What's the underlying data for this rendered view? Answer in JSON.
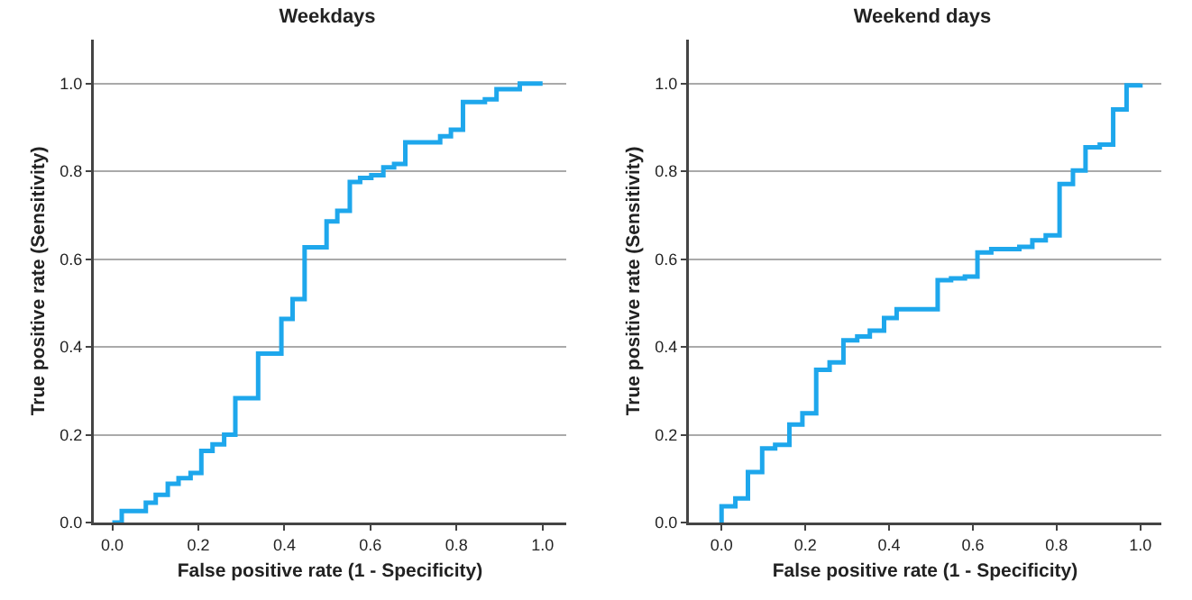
{
  "chart_data": [
    {
      "type": "step",
      "title": "Weekdays",
      "xlabel": "False positive rate (1 - Specificity)",
      "ylabel": "True positive rate (Sensitivity)",
      "xlim": [
        -0.043,
        1.055
      ],
      "xticks": [
        {
          "value": 0,
          "label": "0.0"
        },
        {
          "value": 0.2,
          "label": "0.2"
        },
        {
          "value": 0.4,
          "label": "0.4"
        },
        {
          "value": 0.6,
          "label": "0.6"
        },
        {
          "value": 0.8,
          "label": "0.8"
        },
        {
          "value": 1,
          "label": "1.0"
        }
      ],
      "ylim": [
        0,
        1.1
      ],
      "yticks": [
        {
          "value": 0,
          "label": "0.0"
        },
        {
          "value": 0.2,
          "label": "0.2"
        },
        {
          "value": 0.4,
          "label": "0.4"
        },
        {
          "value": 0.6,
          "label": "0.6"
        },
        {
          "value": 0.8,
          "label": "0.8"
        },
        {
          "value": 1,
          "label": "1.0"
        }
      ],
      "grid": "y",
      "series": [
        {
          "color": "#1ea7ec",
          "x": [
            0,
            0.022,
            0.078,
            0.101,
            0.129,
            0.154,
            0.182,
            0.207,
            0.233,
            0.26,
            0.286,
            0.339,
            0.393,
            0.419,
            0.447,
            0.498,
            0.523,
            0.552,
            0.576,
            0.602,
            0.63,
            0.655,
            0.681,
            0.762,
            0.787,
            0.815,
            0.866,
            0.893,
            0.947,
            1
          ],
          "values": [
            0,
            0.026,
            0.045,
            0.063,
            0.088,
            0.101,
            0.113,
            0.163,
            0.178,
            0.2,
            0.283,
            0.385,
            0.464,
            0.509,
            0.627,
            0.686,
            0.71,
            0.776,
            0.785,
            0.791,
            0.809,
            0.817,
            0.866,
            0.88,
            0.895,
            0.958,
            0.964,
            0.987,
            1,
            1
          ]
        }
      ]
    },
    {
      "type": "step",
      "title": "Weekend days",
      "xlabel": "False positive rate (1 - Specificity)",
      "ylabel": "True positive rate (Sensitivity)",
      "xlim": [
        -0.078,
        1.05
      ],
      "xticks": [
        {
          "value": 0,
          "label": "0.0"
        },
        {
          "value": 0.2,
          "label": "0.2"
        },
        {
          "value": 0.4,
          "label": "0.4"
        },
        {
          "value": 0.6,
          "label": "0.6"
        },
        {
          "value": 0.8,
          "label": "0.8"
        },
        {
          "value": 1,
          "label": "1.0"
        }
      ],
      "ylim": [
        0,
        1.1
      ],
      "yticks": [
        {
          "value": 0,
          "label": "0.0"
        },
        {
          "value": 0.2,
          "label": "0.2"
        },
        {
          "value": 0.4,
          "label": "0.4"
        },
        {
          "value": 0.6,
          "label": "0.6"
        },
        {
          "value": 0.8,
          "label": "0.8"
        },
        {
          "value": 1,
          "label": "1.0"
        }
      ],
      "grid": "y",
      "series": [
        {
          "color": "#1ea7ec",
          "x": [
            0,
            0,
            0.033,
            0.063,
            0.097,
            0.128,
            0.162,
            0.193,
            0.226,
            0.258,
            0.291,
            0.324,
            0.354,
            0.388,
            0.418,
            0.516,
            0.548,
            0.581,
            0.611,
            0.644,
            0.711,
            0.742,
            0.774,
            0.807,
            0.839,
            0.869,
            0.903,
            0.935,
            0.967,
            1
          ],
          "values": [
            0,
            0.037,
            0.055,
            0.115,
            0.169,
            0.177,
            0.223,
            0.249,
            0.348,
            0.365,
            0.415,
            0.424,
            0.437,
            0.466,
            0.486,
            0.552,
            0.556,
            0.56,
            0.615,
            0.623,
            0.628,
            0.643,
            0.654,
            0.771,
            0.802,
            0.855,
            0.861,
            0.941,
            0.996,
            1
          ]
        }
      ]
    }
  ]
}
